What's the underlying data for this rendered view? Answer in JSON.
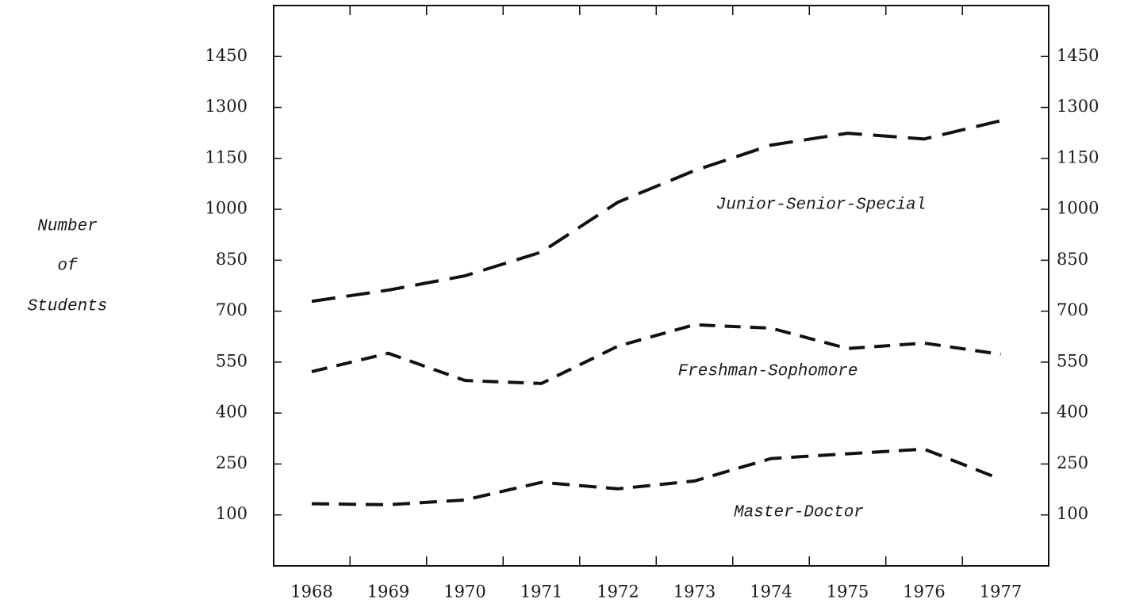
{
  "chart_data": {
    "type": "line",
    "ylabel": [
      "Number",
      "of",
      "Students"
    ],
    "categories": [
      "1968",
      "1969",
      "1970",
      "1971",
      "1972",
      "1973",
      "1974",
      "1975",
      "1976",
      "1977"
    ],
    "series": [
      {
        "name": "Junior-Senior-Special",
        "color": "#111111",
        "values": [
          729,
          762,
          804,
          874,
          1021,
          1114,
          1189,
          1224,
          1207,
          1261
        ]
      },
      {
        "name": "Freshman-Sophomore",
        "color": "#111111",
        "values": [
          522,
          576,
          496,
          487,
          597,
          660,
          650,
          590,
          606,
          573
        ]
      },
      {
        "name": "Master-Doctor",
        "color": "#111111",
        "values": [
          133,
          130,
          144,
          196,
          177,
          200,
          266,
          280,
          294,
          205
        ]
      }
    ],
    "ylim": [
      -50,
      1600
    ],
    "yticks": [
      100,
      250,
      400,
      550,
      700,
      850,
      1000,
      1150,
      1300,
      1450
    ],
    "grid": false
  }
}
